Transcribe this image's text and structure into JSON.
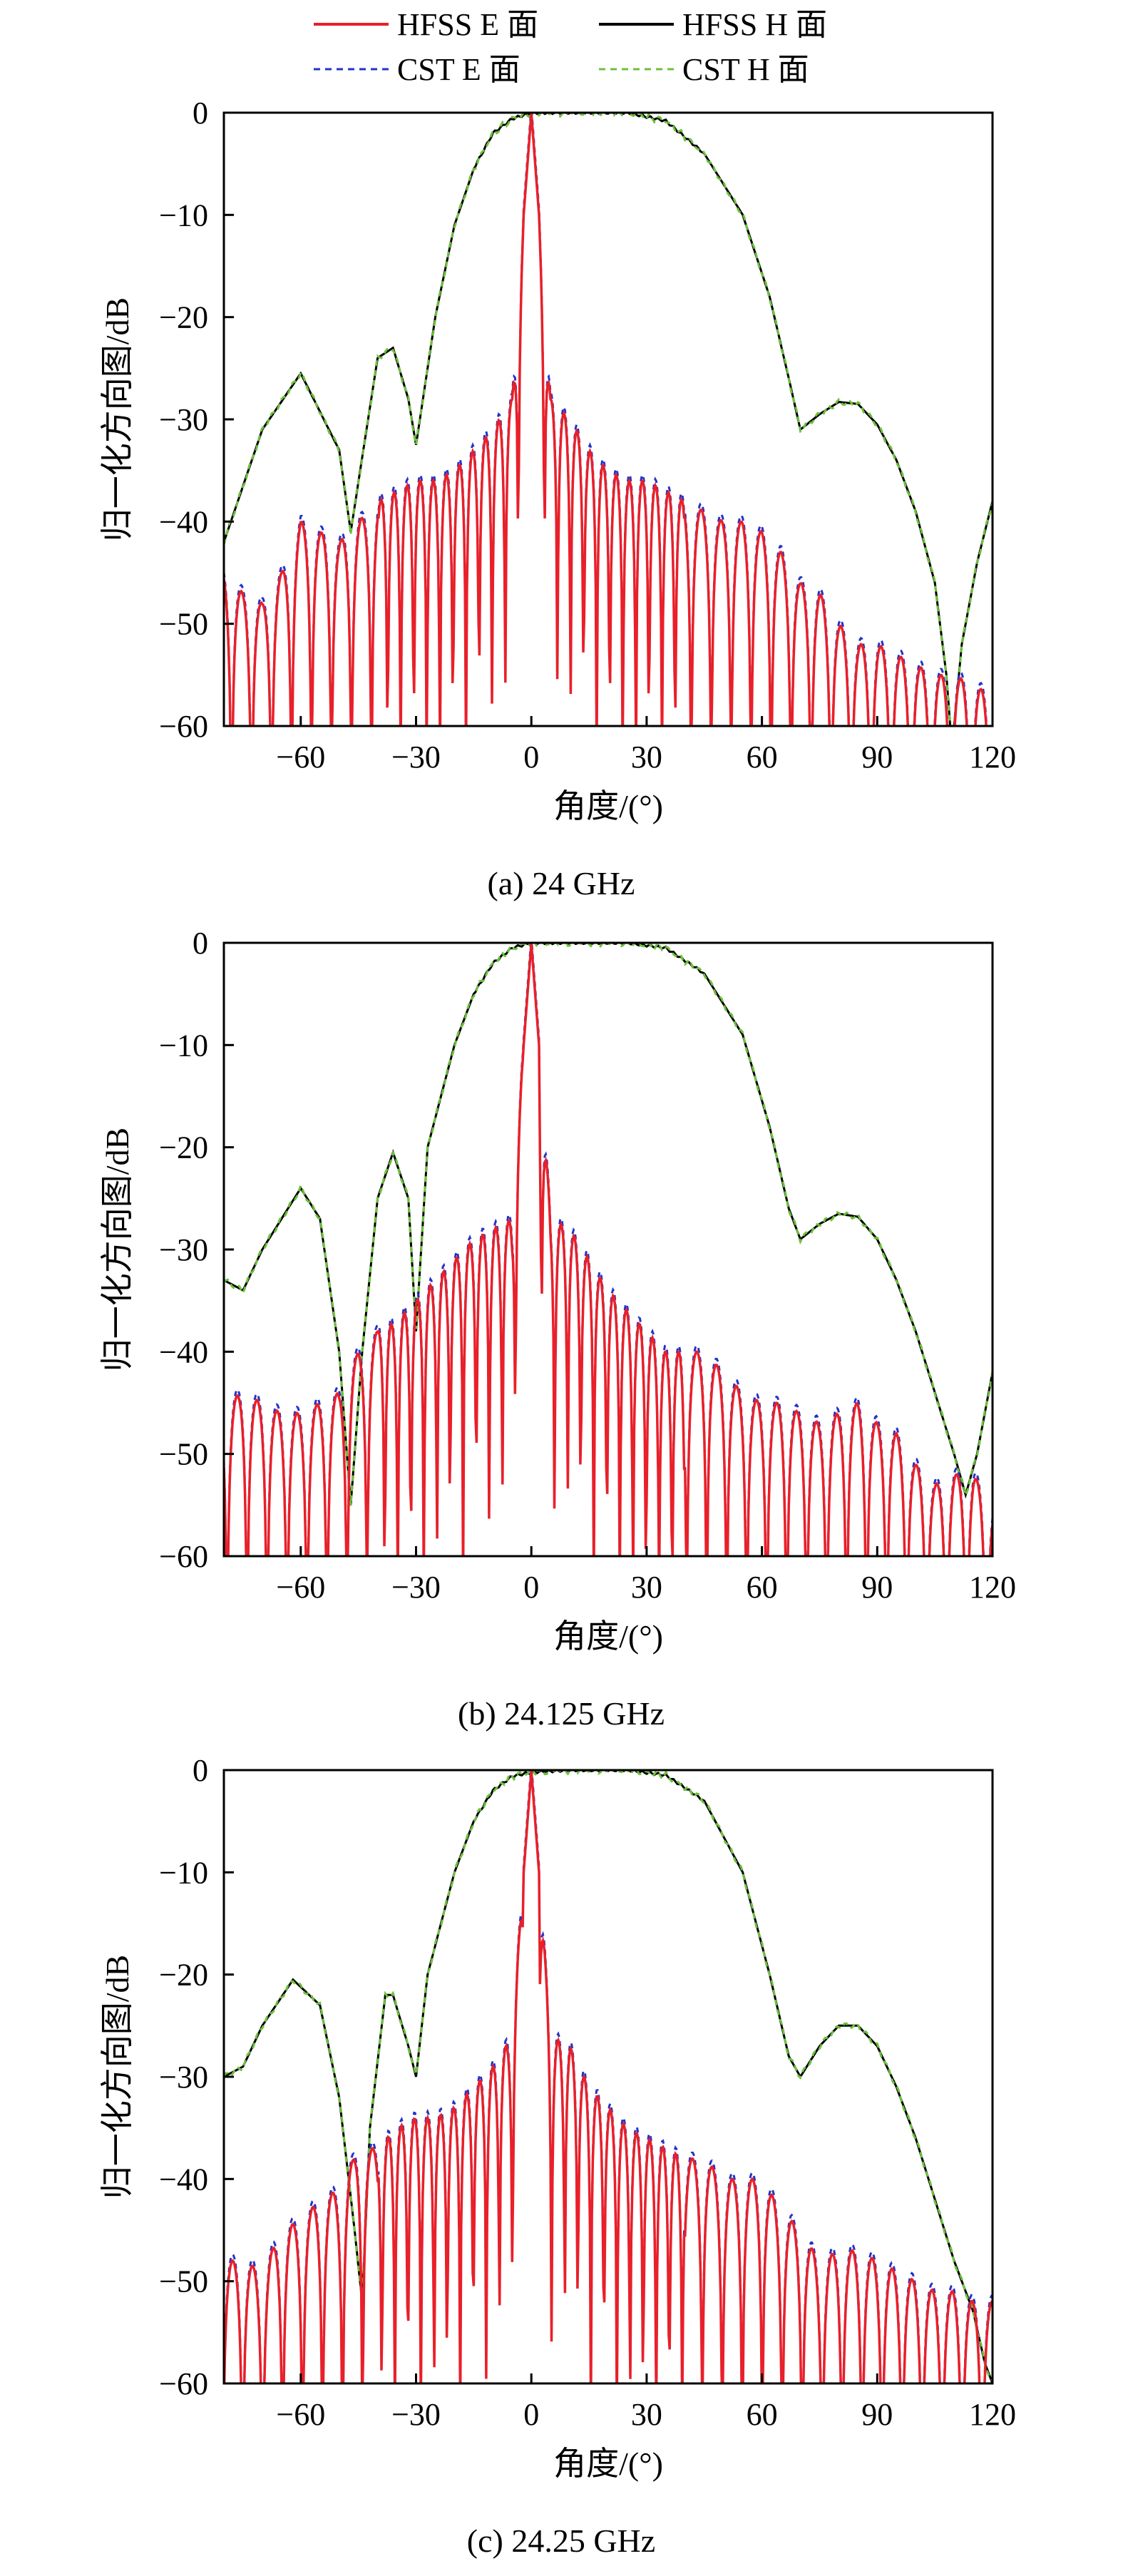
{
  "legend": {
    "items": [
      {
        "label": "HFSS E 面",
        "color": "#e8202a",
        "dash": "solid"
      },
      {
        "label": "HFSS H 面",
        "color": "#000000",
        "dash": "solid"
      },
      {
        "label": "CST E 面",
        "color": "#2433c8",
        "dash": "dashed"
      },
      {
        "label": "CST H 面",
        "color": "#6cc23a",
        "dash": "dashed"
      }
    ]
  },
  "colors": {
    "hfss_e": "#e8202a",
    "hfss_h": "#000000",
    "cst_e": "#2433c8",
    "cst_h": "#6cc23a"
  },
  "chart_data": [
    {
      "type": "line",
      "caption": "(a) 24 GHz",
      "xlabel": "角度/(°)",
      "ylabel": "归一化方向图/dB",
      "xlim": [
        -80,
        120
      ],
      "ylim": [
        -60,
        0
      ],
      "xticks": [
        -60,
        -30,
        0,
        30,
        60,
        90,
        120
      ],
      "yticks": [
        0,
        -10,
        -20,
        -30,
        -40,
        -50,
        -60
      ],
      "h_envelope": [
        [
          -80,
          -42
        ],
        [
          -70,
          -31
        ],
        [
          -60,
          -25.5
        ],
        [
          -50,
          -33
        ],
        [
          -47,
          -41
        ],
        [
          -40,
          -24
        ],
        [
          -36,
          -23
        ],
        [
          -32,
          -28
        ],
        [
          -30,
          -32.5
        ],
        [
          -25,
          -20
        ],
        [
          -20,
          -11
        ],
        [
          -15,
          -5.5
        ],
        [
          -10,
          -2
        ],
        [
          -5,
          -0.6
        ],
        [
          0,
          0
        ],
        [
          10,
          0
        ],
        [
          25,
          0
        ],
        [
          35,
          -0.8
        ],
        [
          45,
          -4
        ],
        [
          55,
          -10
        ],
        [
          62,
          -18
        ],
        [
          67,
          -26
        ],
        [
          70,
          -31
        ],
        [
          75,
          -29.5
        ],
        [
          80,
          -28.3
        ],
        [
          85,
          -28.5
        ],
        [
          90,
          -30.5
        ],
        [
          95,
          -34
        ],
        [
          100,
          -39
        ],
        [
          105,
          -46
        ],
        [
          108,
          -55
        ],
        [
          109,
          -60
        ],
        [
          110,
          -60
        ],
        [
          112,
          -52
        ],
        [
          116,
          -44
        ],
        [
          120,
          -38
        ]
      ],
      "e_envelope": [
        [
          -80,
          -45
        ],
        [
          -75,
          -47
        ],
        [
          -70,
          -48
        ],
        [
          -65,
          -45
        ],
        [
          -60,
          -40
        ],
        [
          -55,
          -41
        ],
        [
          -50,
          -42
        ],
        [
          -45,
          -40
        ],
        [
          -40,
          -38
        ],
        [
          -35,
          -37
        ],
        [
          -30,
          -36
        ],
        [
          -25,
          -36
        ],
        [
          -20,
          -35
        ],
        [
          -15,
          -33
        ],
        [
          -10,
          -31
        ],
        [
          -5,
          -28
        ],
        [
          -2,
          -10
        ],
        [
          0,
          0
        ],
        [
          2,
          -10
        ],
        [
          5,
          -28
        ],
        [
          10,
          -30
        ],
        [
          15,
          -33
        ],
        [
          20,
          -35
        ],
        [
          25,
          -36
        ],
        [
          30,
          -36
        ],
        [
          35,
          -37
        ],
        [
          40,
          -38
        ],
        [
          45,
          -39
        ],
        [
          50,
          -40
        ],
        [
          55,
          -40
        ],
        [
          60,
          -41
        ],
        [
          65,
          -43
        ],
        [
          70,
          -46
        ],
        [
          75,
          -47
        ],
        [
          80,
          -50
        ],
        [
          85,
          -52
        ],
        [
          90,
          -52
        ],
        [
          95,
          -53
        ],
        [
          100,
          -54
        ],
        [
          105,
          -55
        ],
        [
          110,
          -55
        ],
        [
          115,
          -56
        ],
        [
          120,
          -57
        ]
      ]
    },
    {
      "type": "line",
      "caption": "(b) 24.125 GHz",
      "xlabel": "角度/(°)",
      "ylabel": "归一化方向图/dB",
      "xlim": [
        -80,
        120
      ],
      "ylim": [
        -60,
        0
      ],
      "xticks": [
        -60,
        -30,
        0,
        30,
        60,
        90,
        120
      ],
      "yticks": [
        0,
        -10,
        -20,
        -30,
        -40,
        -50,
        -60
      ],
      "h_envelope": [
        [
          -80,
          -33
        ],
        [
          -75,
          -34
        ],
        [
          -70,
          -30
        ],
        [
          -60,
          -24
        ],
        [
          -55,
          -27
        ],
        [
          -50,
          -40
        ],
        [
          -47,
          -55
        ],
        [
          -44,
          -40
        ],
        [
          -40,
          -25
        ],
        [
          -36,
          -20.5
        ],
        [
          -32,
          -25
        ],
        [
          -30,
          -38
        ],
        [
          -27,
          -20
        ],
        [
          -20,
          -10
        ],
        [
          -15,
          -5
        ],
        [
          -10,
          -2
        ],
        [
          -5,
          -0.5
        ],
        [
          0,
          0
        ],
        [
          10,
          0
        ],
        [
          25,
          0
        ],
        [
          35,
          -0.5
        ],
        [
          45,
          -3
        ],
        [
          55,
          -9
        ],
        [
          62,
          -18
        ],
        [
          67,
          -26
        ],
        [
          70,
          -29
        ],
        [
          75,
          -27.5
        ],
        [
          80,
          -26.5
        ],
        [
          85,
          -26.8
        ],
        [
          90,
          -29
        ],
        [
          95,
          -33
        ],
        [
          100,
          -38
        ],
        [
          105,
          -44
        ],
        [
          110,
          -50
        ],
        [
          113,
          -54
        ],
        [
          116,
          -50
        ],
        [
          120,
          -42
        ]
      ],
      "e_envelope": [
        [
          -80,
          -45
        ],
        [
          -75,
          -44
        ],
        [
          -70,
          -45
        ],
        [
          -65,
          -46
        ],
        [
          -60,
          -46
        ],
        [
          -55,
          -45
        ],
        [
          -50,
          -44
        ],
        [
          -45,
          -40
        ],
        [
          -40,
          -38
        ],
        [
          -35,
          -37
        ],
        [
          -30,
          -35
        ],
        [
          -25,
          -33
        ],
        [
          -20,
          -31
        ],
        [
          -15,
          -29
        ],
        [
          -10,
          -28
        ],
        [
          -5,
          -27
        ],
        [
          -2,
          -10
        ],
        [
          0,
          0
        ],
        [
          2,
          -10
        ],
        [
          5,
          -27
        ],
        [
          10,
          -28
        ],
        [
          15,
          -31
        ],
        [
          20,
          -34
        ],
        [
          25,
          -36
        ],
        [
          30,
          -38
        ],
        [
          35,
          -40
        ],
        [
          40,
          -40
        ],
        [
          45,
          -40
        ],
        [
          50,
          -42
        ],
        [
          55,
          -44
        ],
        [
          60,
          -45
        ],
        [
          65,
          -45
        ],
        [
          70,
          -46
        ],
        [
          75,
          -47
        ],
        [
          80,
          -46
        ],
        [
          85,
          -45
        ],
        [
          90,
          -47
        ],
        [
          95,
          -48
        ],
        [
          100,
          -51
        ],
        [
          105,
          -53
        ],
        [
          110,
          -52
        ],
        [
          115,
          -52
        ],
        [
          120,
          -55
        ]
      ]
    },
    {
      "type": "line",
      "caption": "(c) 24.25 GHz",
      "xlabel": "角度/(°)",
      "ylabel": "归一化方向图/dB",
      "xlim": [
        -80,
        120
      ],
      "ylim": [
        -60,
        0
      ],
      "xticks": [
        -60,
        -30,
        0,
        30,
        60,
        90,
        120
      ],
      "yticks": [
        0,
        -10,
        -20,
        -30,
        -40,
        -50,
        -60
      ],
      "h_envelope": [
        [
          -80,
          -30
        ],
        [
          -75,
          -29
        ],
        [
          -70,
          -25
        ],
        [
          -62,
          -20.5
        ],
        [
          -55,
          -23
        ],
        [
          -50,
          -32
        ],
        [
          -46,
          -45
        ],
        [
          -44,
          -52
        ],
        [
          -42,
          -35
        ],
        [
          -38,
          -22
        ],
        [
          -36,
          -22
        ],
        [
          -32,
          -27
        ],
        [
          -30,
          -30
        ],
        [
          -27,
          -20
        ],
        [
          -20,
          -10
        ],
        [
          -15,
          -5
        ],
        [
          -10,
          -2
        ],
        [
          -5,
          -0.6
        ],
        [
          0,
          -0.2
        ],
        [
          10,
          0
        ],
        [
          25,
          0
        ],
        [
          35,
          -0.5
        ],
        [
          45,
          -3
        ],
        [
          55,
          -10
        ],
        [
          62,
          -20
        ],
        [
          67,
          -28
        ],
        [
          70,
          -30
        ],
        [
          75,
          -27
        ],
        [
          80,
          -25
        ],
        [
          85,
          -25
        ],
        [
          90,
          -27
        ],
        [
          95,
          -31
        ],
        [
          100,
          -36
        ],
        [
          105,
          -42
        ],
        [
          110,
          -48
        ],
        [
          115,
          -53
        ],
        [
          118,
          -58
        ],
        [
          120,
          -60
        ]
      ],
      "e_envelope": [
        [
          -80,
          -48
        ],
        [
          -75,
          -48
        ],
        [
          -70,
          -49
        ],
        [
          -65,
          -45
        ],
        [
          -60,
          -44
        ],
        [
          -55,
          -42
        ],
        [
          -50,
          -41
        ],
        [
          -45,
          -37
        ],
        [
          -40,
          -37
        ],
        [
          -35,
          -35
        ],
        [
          -30,
          -34
        ],
        [
          -25,
          -34
        ],
        [
          -20,
          -33
        ],
        [
          -15,
          -31
        ],
        [
          -10,
          -29
        ],
        [
          -5,
          -26
        ],
        [
          -2,
          -10
        ],
        [
          0,
          0
        ],
        [
          2,
          -10
        ],
        [
          5,
          -26
        ],
        [
          10,
          -27
        ],
        [
          15,
          -31
        ],
        [
          20,
          -33
        ],
        [
          25,
          -35
        ],
        [
          30,
          -36
        ],
        [
          35,
          -37
        ],
        [
          40,
          -38
        ],
        [
          45,
          -38
        ],
        [
          50,
          -40
        ],
        [
          55,
          -40
        ],
        [
          60,
          -40
        ],
        [
          65,
          -43
        ],
        [
          70,
          -45
        ],
        [
          75,
          -48
        ],
        [
          80,
          -47
        ],
        [
          85,
          -47
        ],
        [
          90,
          -48
        ],
        [
          95,
          -49
        ],
        [
          100,
          -50
        ],
        [
          105,
          -51
        ],
        [
          110,
          -51
        ],
        [
          115,
          -52
        ],
        [
          120,
          -52
        ]
      ]
    }
  ]
}
